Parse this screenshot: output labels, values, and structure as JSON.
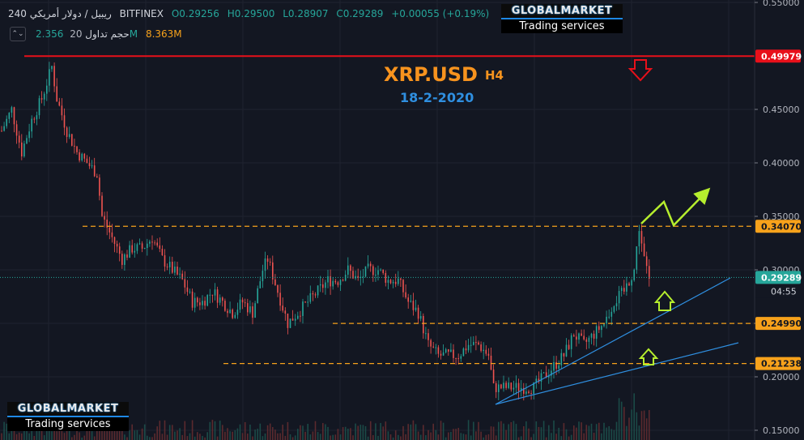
{
  "header": {
    "symbol": "ريبيل / دولار أمريكي",
    "interval": "240",
    "exchange": "BITFINEX",
    "open": "O0.29256",
    "high": "H0.29500",
    "low": "L0.28907",
    "close": "C0.29289",
    "change": "+0.00055 (+0.19%)",
    "volume_label": "حجم تداول",
    "volume_ma": "20",
    "volume_value": "2.356M",
    "volume_ma_value": "8.363M",
    "toggle_icon": "chevron-up-down-icon"
  },
  "logo": {
    "brand": "GLOBALMARKET",
    "tagline": "Trading services"
  },
  "overlay": {
    "symbol": "XRP.USD",
    "timeframe": "H4",
    "date": "18-2-2020"
  },
  "colors": {
    "background": "#131722",
    "resistance": "#e8101a",
    "level": "#f7a21b",
    "trend": "#2f8fe0",
    "projection": "#b6ee2e",
    "up_candle": "#26a69a",
    "down_candle": "#ef5350",
    "price_line": "#26a69a",
    "title_orange": "#f7931e",
    "title_blue": "#2f8fe0"
  },
  "chart_data": {
    "type": "candlestick",
    "symbol": "XRP/USD",
    "exchange": "BITFINEX",
    "timeframe": "240",
    "y_axis": {
      "range": [
        0.15,
        0.55
      ],
      "ticks": [
        "0.15000",
        "0.20000",
        "0.25000",
        "0.30000",
        "0.35000",
        "0.40000",
        "0.45000",
        "0.55000"
      ]
    },
    "price_path": [
      [
        0,
        0.43
      ],
      [
        2,
        0.45
      ],
      [
        4,
        0.41
      ],
      [
        6,
        0.44
      ],
      [
        8,
        0.46
      ],
      [
        10,
        0.49
      ],
      [
        11,
        0.46
      ],
      [
        13,
        0.43
      ],
      [
        15,
        0.41
      ],
      [
        17,
        0.4
      ],
      [
        19,
        0.39
      ],
      [
        20,
        0.35
      ],
      [
        22,
        0.33
      ],
      [
        24,
        0.31
      ],
      [
        26,
        0.32
      ],
      [
        28,
        0.32
      ],
      [
        30,
        0.33
      ],
      [
        32,
        0.31
      ],
      [
        34,
        0.3
      ],
      [
        36,
        0.29
      ],
      [
        38,
        0.27
      ],
      [
        40,
        0.27
      ],
      [
        42,
        0.28
      ],
      [
        44,
        0.27
      ],
      [
        46,
        0.26
      ],
      [
        48,
        0.27
      ],
      [
        50,
        0.26
      ],
      [
        52,
        0.3
      ],
      [
        53,
        0.31
      ],
      [
        55,
        0.28
      ],
      [
        57,
        0.25
      ],
      [
        59,
        0.26
      ],
      [
        61,
        0.27
      ],
      [
        63,
        0.28
      ],
      [
        65,
        0.29
      ],
      [
        67,
        0.29
      ],
      [
        69,
        0.3
      ],
      [
        71,
        0.29
      ],
      [
        73,
        0.3
      ],
      [
        75,
        0.3
      ],
      [
        77,
        0.29
      ],
      [
        79,
        0.29
      ],
      [
        81,
        0.27
      ],
      [
        83,
        0.26
      ],
      [
        85,
        0.23
      ],
      [
        87,
        0.22
      ],
      [
        89,
        0.22
      ],
      [
        91,
        0.22
      ],
      [
        93,
        0.23
      ],
      [
        95,
        0.23
      ],
      [
        97,
        0.22
      ],
      [
        98,
        0.19
      ],
      [
        100,
        0.19
      ],
      [
        102,
        0.19
      ],
      [
        104,
        0.19
      ],
      [
        106,
        0.19
      ],
      [
        108,
        0.2
      ],
      [
        110,
        0.21
      ],
      [
        112,
        0.22
      ],
      [
        114,
        0.24
      ],
      [
        116,
        0.23
      ],
      [
        118,
        0.24
      ],
      [
        120,
        0.25
      ],
      [
        122,
        0.27
      ],
      [
        124,
        0.28
      ],
      [
        126,
        0.3
      ],
      [
        127,
        0.34
      ],
      [
        128,
        0.31
      ],
      [
        129,
        0.29
      ]
    ],
    "last_price": 0.29289,
    "countdown": "04:55",
    "levels": [
      {
        "price": 0.49979,
        "label": "0.49979",
        "color": "#e8101a",
        "style": "solid"
      },
      {
        "price": 0.3407,
        "label": "0.34070",
        "color": "#f7a21b",
        "style": "dashed"
      },
      {
        "price": 0.2499,
        "label": "0.24990",
        "color": "#f7a21b",
        "style": "dashed"
      },
      {
        "price": 0.21238,
        "label": "0.21238",
        "color": "#f7a21b",
        "style": "dashed"
      }
    ]
  }
}
